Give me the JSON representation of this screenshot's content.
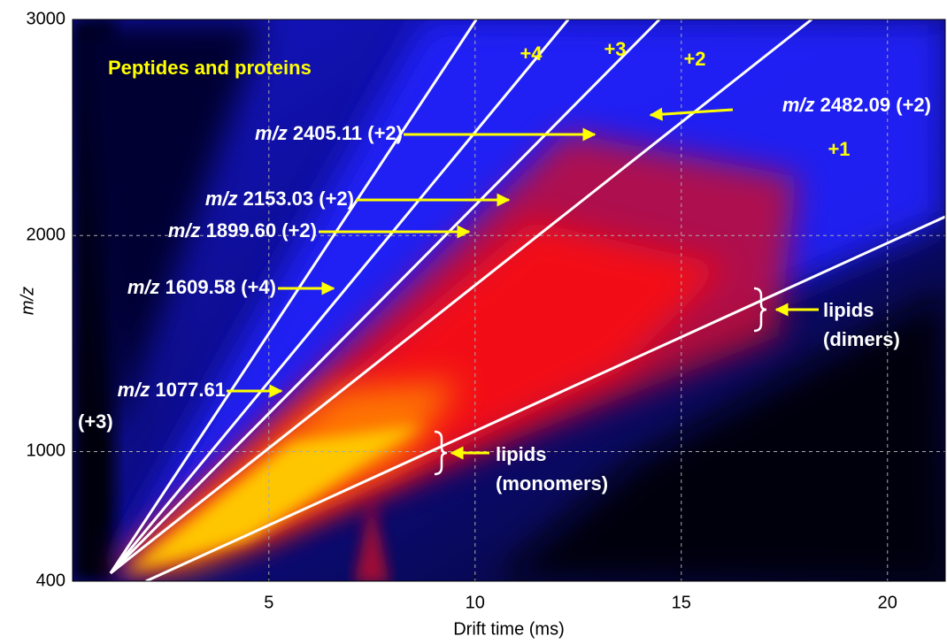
{
  "chart_data": {
    "type": "heatmap",
    "xlabel": "Drift time (ms)",
    "ylabel": "m/z",
    "xlim": [
      0.24,
      21.4
    ],
    "ylim": [
      400,
      3000
    ],
    "xticks": [
      5,
      10,
      15,
      20
    ],
    "yticks": [
      400,
      1000,
      2000,
      3000
    ],
    "grid": true,
    "line_color": "#ffffff",
    "lines": [
      {
        "x": [
          1.16,
          10.03
        ],
        "y": [
          437,
          3000
        ]
      },
      {
        "x": [
          1.16,
          12.26
        ],
        "y": [
          437,
          3000
        ]
      },
      {
        "x": [
          1.16,
          14.47
        ],
        "y": [
          437,
          3000
        ]
      },
      {
        "x": [
          1.16,
          18.16
        ],
        "y": [
          437,
          3000
        ]
      },
      {
        "x": [
          2.02,
          21.4
        ],
        "y": [
          400,
          2087
        ]
      }
    ],
    "annotations": [
      {
        "text": "Peptides and proteins"
      },
      {
        "text": "+4"
      },
      {
        "text": "+3"
      },
      {
        "text": "+2"
      },
      {
        "text": "+1"
      },
      {
        "prefix": "m/z",
        "text": "2482.09 (+2)"
      },
      {
        "prefix": "m/z",
        "text": "2405.11 (+2)"
      },
      {
        "prefix": "m/z",
        "text": "2153.03 (+2)"
      },
      {
        "prefix": "m/z",
        "text": "1899.60 (+2)"
      },
      {
        "prefix": "m/z",
        "text": "1609.58 (+4)"
      },
      {
        "prefix": "m/z",
        "text": "1077.61",
        "lines": [
          "(+3)"
        ]
      },
      {
        "lines": [
          "lipids",
          "(dimers)"
        ]
      },
      {
        "lines": [
          "lipids",
          "(monomers)"
        ]
      }
    ]
  }
}
